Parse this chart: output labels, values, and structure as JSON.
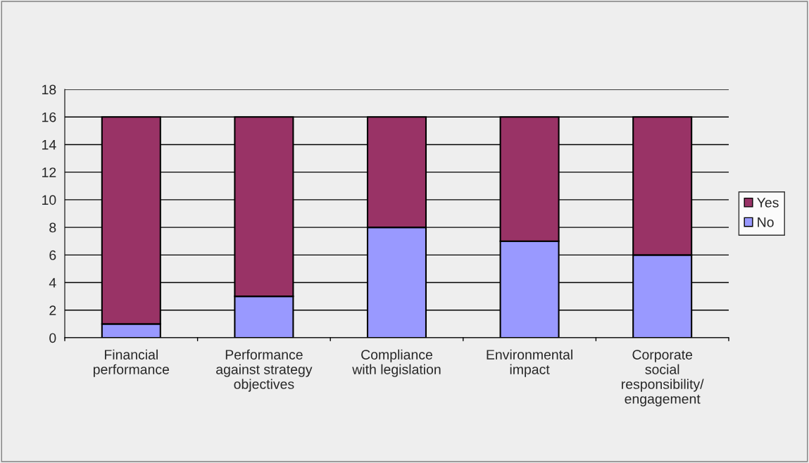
{
  "chart_data": {
    "type": "bar",
    "stacked": true,
    "categories": [
      "Financial\nperformance",
      "Performance\nagainst strategy\nobjectives",
      "Compliance\nwith legislation",
      "Environmental\nimpact",
      "Corporate\nsocial\nresponsibility/\nengagement"
    ],
    "series": [
      {
        "name": "No",
        "color": "#9999ff",
        "values": [
          1,
          3,
          8,
          7,
          6
        ]
      },
      {
        "name": "Yes",
        "color": "#993366",
        "values": [
          15,
          13,
          8,
          9,
          10
        ]
      }
    ],
    "ylim": [
      0,
      18
    ],
    "yticks": [
      0,
      2,
      4,
      6,
      8,
      10,
      12,
      14,
      16,
      18
    ],
    "grid": "y",
    "legend": "right"
  }
}
